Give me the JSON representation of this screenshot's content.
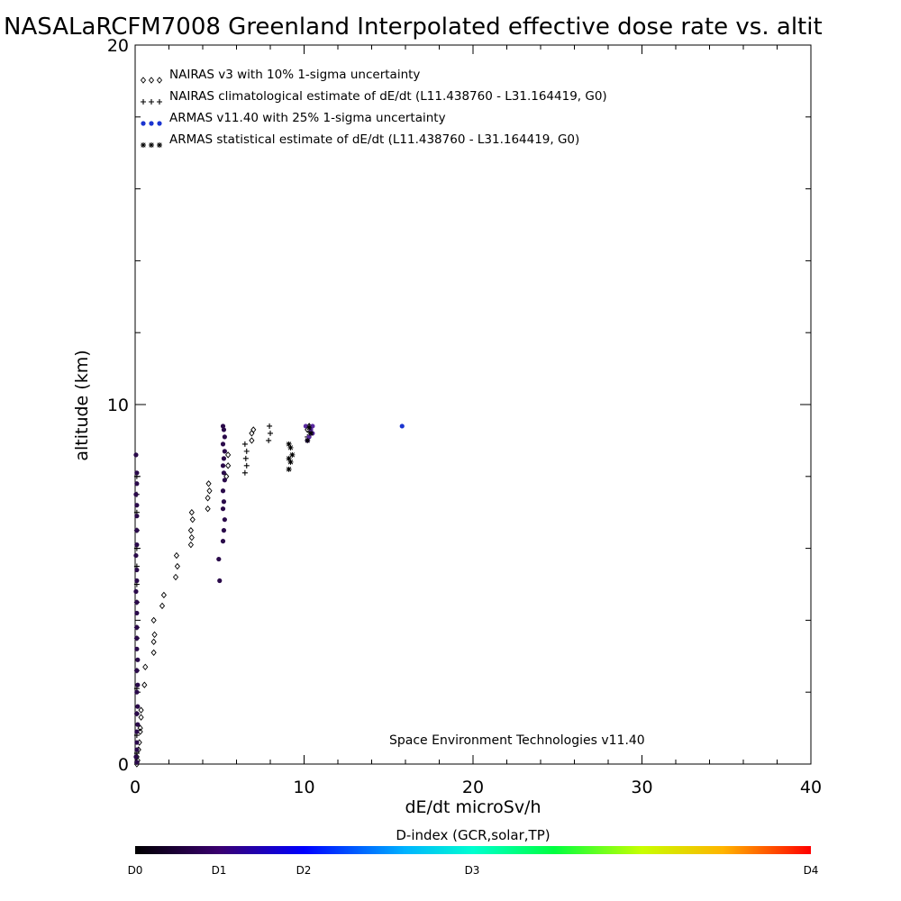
{
  "chart_data": {
    "type": "scatter",
    "title": "NASALaRCFM7008  Greenland Interpolated effective dose rate vs. altit",
    "xlabel": "dE/dt microSv/h",
    "ylabel": "altitude (km)",
    "xlim": [
      0,
      40
    ],
    "ylim": [
      0,
      20
    ],
    "x_tick_labels": [
      "0",
      "10",
      "20",
      "30",
      "40"
    ],
    "y_tick_labels": [
      "0",
      "10",
      "20"
    ],
    "grid": false,
    "legend_position": "top-left",
    "legend": [
      "NAIRAS v3 with 10% 1-sigma uncertainty",
      "NAIRAS climatological estimate of dE/dt (L11.438760 - L31.164419, G0)",
      "ARMAS v11.40 with 25% 1-sigma uncertainty",
      "ARMAS statistical estimate of dE/dt (L11.438760 - L31.164419, G0)"
    ],
    "credit": "Space Environment Technologies v11.40",
    "colorbar": {
      "title": "D-index (GCR,solar,TP)",
      "labels": [
        "D0",
        "D1",
        "D2",
        "D3",
        "D4"
      ]
    },
    "series": [
      {
        "marker": "diamond",
        "color": "#000000",
        "points": [
          [
            0.1,
            0.0
          ],
          [
            0.15,
            0.1
          ],
          [
            0.1,
            0.2
          ],
          [
            0.2,
            0.4
          ],
          [
            0.25,
            0.6
          ],
          [
            0.3,
            0.9
          ],
          [
            0.3,
            1.0
          ],
          [
            0.35,
            1.3
          ],
          [
            0.35,
            1.5
          ],
          [
            0.55,
            2.2
          ],
          [
            0.6,
            2.7
          ],
          [
            1.1,
            3.1
          ],
          [
            1.1,
            3.4
          ],
          [
            1.15,
            3.6
          ],
          [
            1.1,
            4.0
          ],
          [
            1.6,
            4.4
          ],
          [
            1.7,
            4.7
          ],
          [
            2.4,
            5.2
          ],
          [
            2.5,
            5.5
          ],
          [
            2.45,
            5.8
          ],
          [
            3.3,
            6.1
          ],
          [
            3.35,
            6.3
          ],
          [
            3.3,
            6.5
          ],
          [
            3.4,
            6.8
          ],
          [
            3.35,
            7.0
          ],
          [
            4.3,
            7.1
          ],
          [
            4.3,
            7.4
          ],
          [
            4.4,
            7.6
          ],
          [
            4.35,
            7.8
          ],
          [
            5.4,
            8.0
          ],
          [
            5.5,
            8.3
          ],
          [
            5.5,
            8.6
          ],
          [
            6.9,
            9.0
          ],
          [
            6.9,
            9.2
          ],
          [
            7.0,
            9.3
          ],
          [
            10.2,
            9.3
          ],
          [
            10.3,
            9.4
          ]
        ]
      },
      {
        "marker": "plus",
        "color": "#000000",
        "points": [
          [
            0.1,
            0.05
          ],
          [
            0.1,
            0.3
          ],
          [
            0.1,
            0.8
          ],
          [
            0.1,
            1.4
          ],
          [
            0.1,
            2.1
          ],
          [
            0.1,
            2.6
          ],
          [
            0.1,
            3.5
          ],
          [
            0.1,
            3.8
          ],
          [
            0.1,
            4.5
          ],
          [
            0.1,
            5.0
          ],
          [
            0.1,
            5.5
          ],
          [
            0.1,
            6.0
          ],
          [
            0.1,
            6.5
          ],
          [
            0.1,
            7.0
          ],
          [
            0.1,
            7.5
          ],
          [
            0.1,
            8.0
          ],
          [
            6.5,
            8.1
          ],
          [
            6.6,
            8.3
          ],
          [
            6.55,
            8.5
          ],
          [
            6.6,
            8.7
          ],
          [
            6.5,
            8.9
          ],
          [
            7.9,
            9.0
          ],
          [
            8.0,
            9.2
          ],
          [
            7.95,
            9.4
          ],
          [
            10.2,
            9.1
          ],
          [
            10.3,
            9.25
          ],
          [
            10.3,
            9.4
          ]
        ]
      },
      {
        "marker": "circle",
        "color": "#2a0a4a",
        "points": [
          [
            0.1,
            0.05
          ],
          [
            0.05,
            0.2
          ],
          [
            0.1,
            0.4
          ],
          [
            0.1,
            0.6
          ],
          [
            0.1,
            0.9
          ],
          [
            0.15,
            1.1
          ],
          [
            0.1,
            1.4
          ],
          [
            0.15,
            1.6
          ],
          [
            0.1,
            2.0
          ],
          [
            0.15,
            2.2
          ],
          [
            0.1,
            2.6
          ],
          [
            0.15,
            2.9
          ],
          [
            0.1,
            3.2
          ],
          [
            0.1,
            3.5
          ],
          [
            0.1,
            3.8
          ],
          [
            0.1,
            4.2
          ],
          [
            0.1,
            4.5
          ],
          [
            0.05,
            4.8
          ],
          [
            0.1,
            5.1
          ],
          [
            0.1,
            5.4
          ],
          [
            0.05,
            5.8
          ],
          [
            0.1,
            6.1
          ],
          [
            0.1,
            6.5
          ],
          [
            0.1,
            6.9
          ],
          [
            0.1,
            7.2
          ],
          [
            0.05,
            7.5
          ],
          [
            0.1,
            7.8
          ],
          [
            0.1,
            8.1
          ],
          [
            0.05,
            8.6
          ],
          [
            5.0,
            5.1
          ],
          [
            4.95,
            5.7
          ],
          [
            5.2,
            6.2
          ],
          [
            5.25,
            6.5
          ],
          [
            5.3,
            6.8
          ],
          [
            5.2,
            7.1
          ],
          [
            5.25,
            7.3
          ],
          [
            5.2,
            7.6
          ],
          [
            5.3,
            7.9
          ],
          [
            5.25,
            8.1
          ],
          [
            5.2,
            8.3
          ],
          [
            5.25,
            8.5
          ],
          [
            5.3,
            8.7
          ],
          [
            5.2,
            8.9
          ],
          [
            5.3,
            9.1
          ],
          [
            5.25,
            9.3
          ],
          [
            5.2,
            9.4
          ]
        ]
      },
      {
        "marker": "circle",
        "color": "#5a2aa0",
        "points": [
          [
            10.2,
            9.0
          ],
          [
            10.3,
            9.1
          ],
          [
            10.5,
            9.2
          ],
          [
            10.4,
            9.3
          ],
          [
            10.1,
            9.4
          ],
          [
            10.5,
            9.4
          ]
        ]
      },
      {
        "marker": "circle",
        "color": "#1a34d0",
        "points": [
          [
            15.8,
            9.4
          ]
        ]
      },
      {
        "marker": "asterisk",
        "color": "#000000",
        "points": [
          [
            9.1,
            8.2
          ],
          [
            9.2,
            8.4
          ],
          [
            9.1,
            8.5
          ],
          [
            9.3,
            8.6
          ],
          [
            9.2,
            8.8
          ],
          [
            9.1,
            8.9
          ],
          [
            10.2,
            9.0
          ],
          [
            10.4,
            9.2
          ],
          [
            10.3,
            9.35
          ]
        ]
      }
    ]
  }
}
